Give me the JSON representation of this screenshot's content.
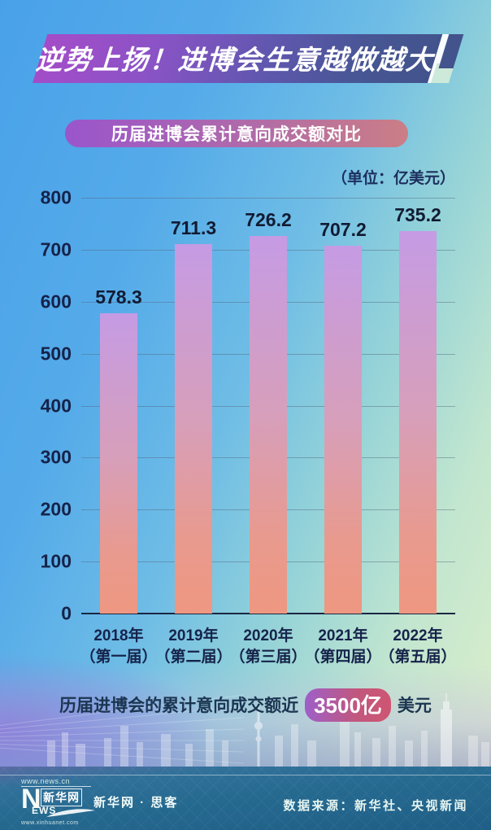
{
  "header": {
    "title": "逆势上扬！进博会生意越做越大"
  },
  "subtitle": {
    "label": "历届进博会累计意向成交额对比"
  },
  "chart_data": {
    "type": "bar",
    "title": "历届进博会累计意向成交额对比",
    "unit_label": "（单位：亿美元）",
    "categories": [
      "2018年",
      "2019年",
      "2020年",
      "2021年",
      "2022年"
    ],
    "categories_line2": [
      "（第一届）",
      "（第二届）",
      "（第三届）",
      "（第四届）",
      "（第五届）"
    ],
    "values": [
      578.3,
      711.3,
      726.2,
      707.2,
      735.2
    ],
    "xlabel": "",
    "ylabel": "",
    "ylim": [
      0,
      800
    ],
    "ytick_step": 100,
    "grid": true,
    "legend": "none",
    "bar_gradient": [
      "#c59be4",
      "#d79fba",
      "#e89a8e",
      "#ee9781"
    ]
  },
  "highlight": {
    "prefix": "历届进博会的累计意向成交额近",
    "value": "3500亿",
    "suffix": "美元",
    "pill_gradient": [
      "#9e5fc8",
      "#cf5572"
    ]
  },
  "footer": {
    "logo": {
      "url_top": "www.news.cn",
      "n": "N",
      "ews": "EWS",
      "boxed_name": "新华网",
      "url_bottom": "www.xinhuanet.com"
    },
    "tagline": "新华网 · 思客",
    "source": "数据来源：新华社、央视新闻"
  },
  "colors": {
    "banner_gradient": [
      "#a44cc8",
      "#42538c"
    ],
    "subtitle_gradient": [
      "#9a55cc",
      "#cb7e86"
    ],
    "axis_text": "#16234a",
    "value_text": "#111b33",
    "background_blue": "#49a1e9",
    "background_green": "#e0f0ca",
    "footer_blue": "#1f5e86"
  }
}
